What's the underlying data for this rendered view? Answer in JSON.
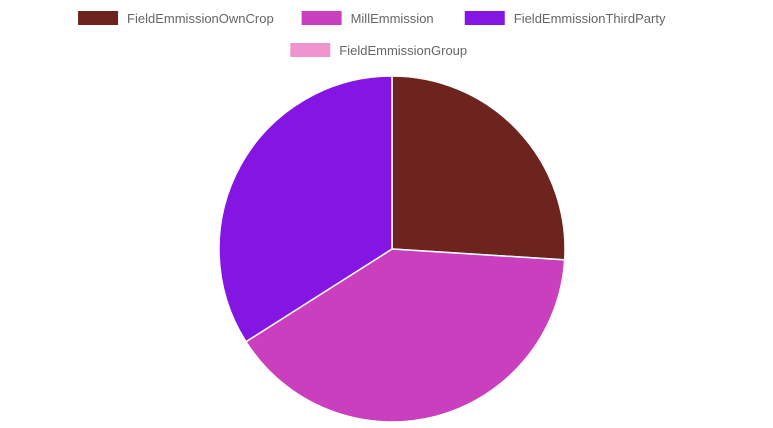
{
  "chart_data": {
    "type": "pie",
    "title": "",
    "legend_position": "top",
    "labels": [
      "FieldEmmissionOwnCrop",
      "MillEmmission",
      "FieldEmmissionThirdParty",
      "FieldEmmissionGroup"
    ],
    "values": [
      26,
      40,
      34,
      0
    ],
    "colors": [
      "#6e241e",
      "#c93fbe",
      "#8515e2",
      "#f094cf"
    ]
  }
}
